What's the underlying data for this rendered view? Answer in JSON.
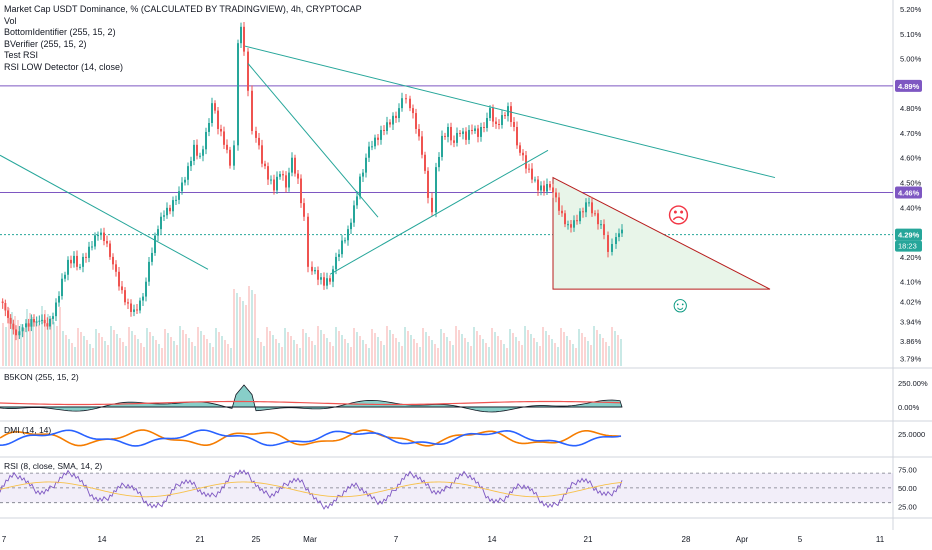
{
  "chart_data": [
    {
      "type": "candlestick",
      "title": "Market Cap USDT Dominance, % (CALCULATED BY TRADINGVIEW), 4h, CRYPTOCAP",
      "indicators": [
        "Vol",
        "BottomIdentifier (255, 15, 2)",
        "BVerifier (255, 15, 2)",
        "Test RSI",
        "RSI LOW Detector (14, close)"
      ],
      "y_ticks": [
        "5.20%",
        "5.10%",
        "5.00%",
        "4.90%",
        "4.80%",
        "4.70%",
        "4.60%",
        "4.50%",
        "4.40%",
        "4.30%",
        "4.20%",
        "4.10%",
        "4.02%",
        "3.94%",
        "3.86%",
        "3.79%"
      ],
      "x_ticks": [
        "7",
        "14",
        "21",
        "25",
        "Mar",
        "7",
        "14",
        "21",
        "28",
        "Apr",
        "5",
        "11"
      ],
      "ylim": [
        3.76,
        5.22
      ],
      "price_labels": [
        {
          "value": 4.89,
          "label": "4.89%",
          "color": "#7e57c2"
        },
        {
          "value": 4.46,
          "label": "4.46%",
          "color": "#7e57c2"
        },
        {
          "value": 4.29,
          "label": "4.29%",
          "color": "#26a69a"
        }
      ],
      "countdown": "18:23",
      "up_color": "#26a69a",
      "down_color": "#ef5350",
      "close_path": [
        [
          0,
          4.02
        ],
        [
          8,
          3.95
        ],
        [
          16,
          3.9
        ],
        [
          26,
          3.94
        ],
        [
          34,
          3.92
        ],
        [
          42,
          3.95
        ],
        [
          50,
          3.93
        ],
        [
          56,
          4.0
        ],
        [
          62,
          4.1
        ],
        [
          68,
          4.18
        ],
        [
          74,
          4.2
        ],
        [
          80,
          4.16
        ],
        [
          86,
          4.2
        ],
        [
          92,
          4.25
        ],
        [
          98,
          4.3
        ],
        [
          104,
          4.28
        ],
        [
          110,
          4.22
        ],
        [
          116,
          4.12
        ],
        [
          122,
          4.05
        ],
        [
          128,
          4.0
        ],
        [
          134,
          3.98
        ],
        [
          140,
          4.02
        ],
        [
          146,
          4.1
        ],
        [
          152,
          4.22
        ],
        [
          158,
          4.32
        ],
        [
          164,
          4.38
        ],
        [
          170,
          4.4
        ],
        [
          176,
          4.45
        ],
        [
          182,
          4.48
        ],
        [
          188,
          4.55
        ],
        [
          194,
          4.64
        ],
        [
          200,
          4.6
        ],
        [
          206,
          4.7
        ],
        [
          212,
          4.82
        ],
        [
          218,
          4.72
        ],
        [
          224,
          4.66
        ],
        [
          230,
          4.58
        ],
        [
          234,
          4.65
        ],
        [
          238,
          5.05
        ],
        [
          241,
          5.14
        ],
        [
          244,
          5.02
        ],
        [
          248,
          4.85
        ],
        [
          252,
          4.72
        ],
        [
          256,
          4.68
        ],
        [
          262,
          4.58
        ],
        [
          268,
          4.52
        ],
        [
          274,
          4.48
        ],
        [
          280,
          4.55
        ],
        [
          286,
          4.5
        ],
        [
          292,
          4.58
        ],
        [
          298,
          4.5
        ],
        [
          304,
          4.35
        ],
        [
          308,
          4.18
        ],
        [
          312,
          4.15
        ],
        [
          318,
          4.12
        ],
        [
          324,
          4.1
        ],
        [
          330,
          4.12
        ],
        [
          336,
          4.18
        ],
        [
          342,
          4.25
        ],
        [
          348,
          4.3
        ],
        [
          354,
          4.4
        ],
        [
          360,
          4.52
        ],
        [
          366,
          4.6
        ],
        [
          372,
          4.65
        ],
        [
          378,
          4.68
        ],
        [
          384,
          4.72
        ],
        [
          390,
          4.75
        ],
        [
          396,
          4.78
        ],
        [
          402,
          4.82
        ],
        [
          406,
          4.85
        ],
        [
          410,
          4.8
        ],
        [
          416,
          4.72
        ],
        [
          422,
          4.62
        ],
        [
          428,
          4.45
        ],
        [
          432,
          4.38
        ],
        [
          436,
          4.55
        ],
        [
          442,
          4.68
        ],
        [
          448,
          4.72
        ],
        [
          454,
          4.66
        ],
        [
          460,
          4.7
        ],
        [
          466,
          4.68
        ],
        [
          472,
          4.72
        ],
        [
          478,
          4.7
        ],
        [
          484,
          4.74
        ],
        [
          490,
          4.78
        ],
        [
          496,
          4.72
        ],
        [
          502,
          4.76
        ],
        [
          508,
          4.8
        ],
        [
          514,
          4.72
        ],
        [
          520,
          4.62
        ],
        [
          526,
          4.56
        ],
        [
          532,
          4.52
        ],
        [
          538,
          4.48
        ],
        [
          544,
          4.48
        ],
        [
          550,
          4.5
        ],
        [
          556,
          4.42
        ],
        [
          562,
          4.36
        ],
        [
          568,
          4.32
        ],
        [
          574,
          4.34
        ],
        [
          580,
          4.38
        ],
        [
          586,
          4.42
        ],
        [
          592,
          4.38
        ],
        [
          598,
          4.34
        ],
        [
          604,
          4.3
        ],
        [
          608,
          4.22
        ],
        [
          612,
          4.24
        ],
        [
          616,
          4.3
        ],
        [
          622,
          4.29
        ]
      ],
      "trendlines": [
        {
          "from": [
            245,
            5.05
          ],
          "to": [
            775,
            4.52
          ],
          "color": "#26a69a"
        },
        {
          "from": [
            0,
            4.61
          ],
          "to": [
            208,
            4.15
          ],
          "color": "#26a69a"
        },
        {
          "from": [
            248,
            4.98
          ],
          "to": [
            378,
            4.36
          ],
          "color": "#26a69a"
        },
        {
          "from": [
            330,
            4.13
          ],
          "to": [
            548,
            4.63
          ],
          "color": "#26a69a"
        }
      ],
      "horizontal_lines": [
        {
          "value": 4.89,
          "color": "#7e57c2"
        },
        {
          "value": 4.46,
          "color": "#7e57c2"
        },
        {
          "value": 4.29,
          "color": "#26a69a",
          "dashed": true
        }
      ],
      "projection_triangle": {
        "points": [
          [
            553,
            4.52
          ],
          [
            553,
            4.07
          ],
          [
            770,
            4.07
          ]
        ],
        "fill": "#e8f5e9",
        "stroke": "#b71c1c"
      },
      "emojis": [
        {
          "x": 678,
          "y": 4.37,
          "char": "☹",
          "color": "#f23645"
        },
        {
          "x": 680,
          "y": 4.01,
          "char": "☺",
          "color": "#089981"
        }
      ]
    },
    {
      "type": "line",
      "title": "B5KON (255, 15, 2)",
      "y_ticks": [
        "250.00%",
        "0.00%"
      ]
    },
    {
      "type": "line",
      "title": "DMI (14, 14)",
      "y_ticks": [
        "25.0000"
      ],
      "series": [
        {
          "color": "#f57c00"
        },
        {
          "color": "#2962ff"
        }
      ]
    },
    {
      "type": "line",
      "title": "RSI (8, close, SMA, 14, 2)",
      "y_ticks": [
        "75.00",
        "50.00",
        "25.00"
      ],
      "ylim": [
        12,
        85
      ],
      "bands": [
        70,
        50,
        30
      ]
    }
  ]
}
